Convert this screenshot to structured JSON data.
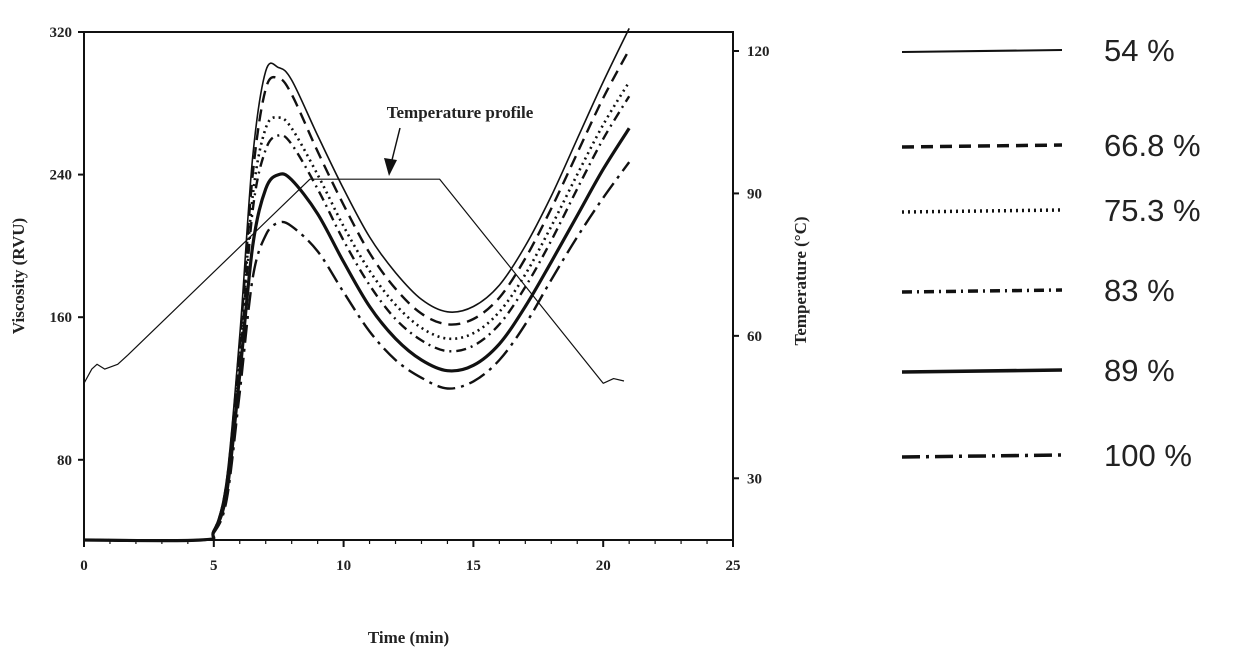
{
  "chart_data": {
    "type": "line",
    "xlabel": "Time (min)",
    "ylabel": "Viscosity (RVU)",
    "y2label": "Temperature (°C)",
    "xlim": [
      0,
      25
    ],
    "ylim": [
      35,
      320
    ],
    "y2lim": [
      17,
      124
    ],
    "x_ticks": [
      0,
      5,
      10,
      15,
      20,
      25
    ],
    "y_ticks": [
      80,
      160,
      240,
      320
    ],
    "y2_ticks": [
      30,
      60,
      90,
      120
    ],
    "grid": false,
    "legend_position": "right",
    "annotation": "Temperature profile",
    "series": [
      {
        "name": "54 %",
        "style": "solid-thin",
        "x": [
          0,
          4.5,
          5,
          5.5,
          6,
          6.5,
          7,
          7.5,
          8,
          9,
          10,
          11,
          12,
          13,
          14,
          15,
          16,
          17,
          18,
          19,
          20,
          21
        ],
        "y": [
          35,
          35,
          40,
          70,
          150,
          250,
          298,
          300,
          293,
          262,
          232,
          205,
          185,
          170,
          163,
          166,
          178,
          200,
          228,
          260,
          292,
          322
        ]
      },
      {
        "name": "66.8 %",
        "style": "dash",
        "x": [
          0,
          4.5,
          5,
          5.5,
          6,
          6.5,
          7,
          7.5,
          8,
          9,
          10,
          11,
          12,
          13,
          14,
          15,
          16,
          17,
          18,
          19,
          20,
          21
        ],
        "y": [
          35,
          35,
          40,
          68,
          145,
          240,
          288,
          294,
          285,
          253,
          223,
          196,
          176,
          162,
          156,
          159,
          171,
          193,
          221,
          252,
          283,
          310
        ]
      },
      {
        "name": "75.3 %",
        "style": "dot",
        "x": [
          0,
          4.5,
          5,
          5.5,
          6,
          6.5,
          7,
          7.5,
          8,
          9,
          10,
          11,
          12,
          13,
          14,
          15,
          16,
          17,
          18,
          19,
          20,
          21
        ],
        "y": [
          35,
          35,
          40,
          66,
          140,
          228,
          266,
          272,
          266,
          240,
          211,
          186,
          167,
          154,
          148,
          151,
          163,
          184,
          211,
          240,
          268,
          292
        ]
      },
      {
        "name": "83 %",
        "style": "dashdot",
        "x": [
          0,
          4.5,
          5,
          5.5,
          6,
          6.5,
          7,
          7.5,
          8,
          9,
          10,
          11,
          12,
          13,
          14,
          15,
          16,
          17,
          18,
          19,
          20,
          21
        ],
        "y": [
          35,
          35,
          40,
          64,
          135,
          220,
          254,
          262,
          257,
          232,
          203,
          178,
          159,
          147,
          141,
          144,
          156,
          177,
          203,
          232,
          260,
          284
        ]
      },
      {
        "name": "89 %",
        "style": "solid-thick",
        "x": [
          0,
          4.5,
          5,
          5.5,
          6,
          6.5,
          7,
          7.5,
          8,
          9,
          10,
          11,
          12,
          13,
          14,
          15,
          16,
          17,
          18,
          19,
          20,
          21
        ],
        "y": [
          35,
          35,
          40,
          62,
          128,
          200,
          232,
          240,
          237,
          218,
          191,
          166,
          148,
          136,
          130,
          133,
          145,
          166,
          191,
          217,
          243,
          266
        ]
      },
      {
        "name": "100 %",
        "style": "longdashdot",
        "x": [
          0,
          4.5,
          5,
          5.5,
          6,
          6.5,
          7,
          7.5,
          8,
          9,
          10,
          11,
          12,
          13,
          14,
          15,
          16,
          17,
          18,
          19,
          20,
          21
        ],
        "y": [
          35,
          35,
          39,
          58,
          118,
          182,
          206,
          213,
          211,
          197,
          174,
          152,
          136,
          126,
          120,
          124,
          136,
          156,
          181,
          205,
          227,
          247
        ]
      },
      {
        "name": "Temperature profile",
        "style": "thin",
        "axis": "y2",
        "x": [
          0,
          0.3,
          0.5,
          0.8,
          1.3,
          1.7,
          8.7,
          13.7,
          20.0,
          20.4,
          20.8
        ],
        "y": [
          50,
          53,
          54,
          53,
          54,
          56,
          93,
          93,
          50,
          51,
          50.5
        ]
      }
    ]
  }
}
